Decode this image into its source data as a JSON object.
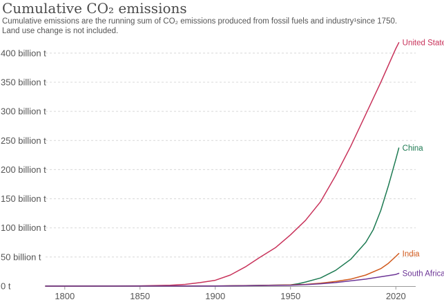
{
  "chart_data": {
    "type": "line",
    "title": "Cumulative CO₂ emissions",
    "subtitle_line1": "Cumulative emissions are the running sum of CO₂ emissions produced from fossil fuels and industry¹since 1750.",
    "subtitle_line2": "Land use change is not included.",
    "xlabel": "",
    "ylabel": "",
    "xlim": [
      1790,
      2024
    ],
    "ylim": [
      0,
      420
    ],
    "x_ticks": [
      {
        "value": 1800,
        "label": "1800"
      },
      {
        "value": 1850,
        "label": "1850"
      },
      {
        "value": 1900,
        "label": "1900"
      },
      {
        "value": 1950,
        "label": "1950"
      },
      {
        "value": 2020,
        "label": "2020"
      }
    ],
    "y_ticks": [
      {
        "value": 0,
        "label": "0 t"
      },
      {
        "value": 50,
        "label": "50 billion t"
      },
      {
        "value": 100,
        "label": "100 billion t"
      },
      {
        "value": 150,
        "label": "150 billion t"
      },
      {
        "value": 200,
        "label": "200 billion t"
      },
      {
        "value": 250,
        "label": "250 billion t"
      },
      {
        "value": 300,
        "label": "300 billion t"
      },
      {
        "value": 350,
        "label": "350 billion t"
      },
      {
        "value": 400,
        "label": "400 billion t"
      }
    ],
    "grid": true,
    "series": [
      {
        "name": "United States",
        "color": "#c8325a",
        "points": [
          [
            1750,
            0
          ],
          [
            1800,
            0.05
          ],
          [
            1850,
            0.5
          ],
          [
            1870,
            1.5
          ],
          [
            1880,
            3
          ],
          [
            1890,
            6
          ],
          [
            1900,
            10
          ],
          [
            1910,
            19
          ],
          [
            1920,
            33
          ],
          [
            1930,
            50
          ],
          [
            1940,
            66
          ],
          [
            1950,
            88
          ],
          [
            1960,
            113
          ],
          [
            1970,
            145
          ],
          [
            1980,
            190
          ],
          [
            1990,
            240
          ],
          [
            2000,
            295
          ],
          [
            2010,
            350
          ],
          [
            2020,
            408
          ],
          [
            2022,
            418
          ]
        ]
      },
      {
        "name": "China",
        "color": "#1d7a52",
        "points": [
          [
            1750,
            0
          ],
          [
            1900,
            0.1
          ],
          [
            1950,
            2
          ],
          [
            1955,
            4
          ],
          [
            1960,
            7
          ],
          [
            1970,
            14
          ],
          [
            1980,
            27
          ],
          [
            1990,
            46
          ],
          [
            2000,
            75
          ],
          [
            2005,
            97
          ],
          [
            2010,
            130
          ],
          [
            2015,
            172
          ],
          [
            2020,
            218
          ],
          [
            2022,
            237
          ]
        ]
      },
      {
        "name": "India",
        "color": "#d0591c",
        "points": [
          [
            1750,
            0
          ],
          [
            1900,
            0.2
          ],
          [
            1950,
            2
          ],
          [
            1960,
            3
          ],
          [
            1970,
            5
          ],
          [
            1980,
            8
          ],
          [
            1990,
            12
          ],
          [
            2000,
            19
          ],
          [
            2010,
            30
          ],
          [
            2015,
            39
          ],
          [
            2020,
            51
          ],
          [
            2022,
            56
          ]
        ]
      },
      {
        "name": "South Africa",
        "color": "#6c3596",
        "points": [
          [
            1750,
            0
          ],
          [
            1900,
            0.1
          ],
          [
            1950,
            1.5
          ],
          [
            1960,
            2.5
          ],
          [
            1970,
            4
          ],
          [
            1980,
            6
          ],
          [
            1990,
            9
          ],
          [
            2000,
            12
          ],
          [
            2010,
            16
          ],
          [
            2020,
            20
          ],
          [
            2022,
            22
          ]
        ]
      }
    ]
  }
}
